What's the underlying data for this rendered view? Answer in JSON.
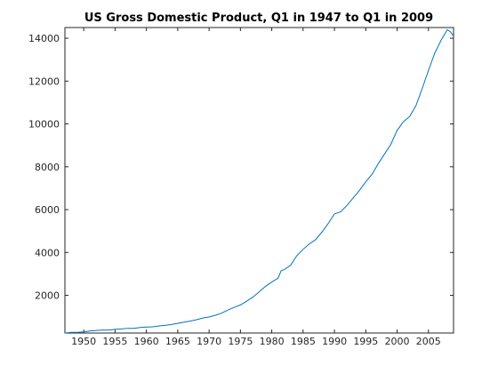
{
  "chart_data": {
    "type": "line",
    "title": "US Gross Domestic Product, Q1 in 1947 to Q1 in 2009",
    "xlabel": "",
    "ylabel": "",
    "xlim": [
      1947,
      2009
    ],
    "ylim": [
      240,
      14500
    ],
    "xticks": [
      1950,
      1955,
      1960,
      1965,
      1970,
      1975,
      1980,
      1985,
      1990,
      1995,
      2000,
      2005
    ],
    "yticks": [
      2000,
      4000,
      6000,
      8000,
      10000,
      12000,
      14000
    ],
    "grid": false,
    "line_color": "#0072BD",
    "series": [
      {
        "x": [
          1947,
          1948,
          1949,
          1950,
          1951,
          1952,
          1953,
          1954,
          1955,
          1956,
          1957,
          1958,
          1959,
          1960,
          1961,
          1962,
          1963,
          1964,
          1965,
          1966,
          1967,
          1968,
          1969,
          1970,
          1971,
          1972,
          1973,
          1974,
          1975,
          1976,
          1977,
          1978,
          1979,
          1980,
          1981,
          1981.5,
          1982,
          1983,
          1984,
          1985,
          1986,
          1987,
          1988,
          1989,
          1990,
          1991,
          1992,
          1993,
          1994,
          1995,
          1996,
          1997,
          1998,
          1999,
          2000,
          2001,
          2002,
          2003,
          2004,
          2005,
          2006,
          2007,
          2008,
          2008.5,
          2009
        ],
        "y": [
          240,
          270,
          270,
          290,
          340,
          360,
          380,
          380,
          410,
          430,
          460,
          460,
          500,
          520,
          530,
          570,
          600,
          640,
          690,
          750,
          800,
          860,
          940,
          990,
          1070,
          1170,
          1310,
          1440,
          1550,
          1730,
          1920,
          2160,
          2420,
          2620,
          2800,
          3150,
          3200,
          3400,
          3850,
          4150,
          4400,
          4600,
          4950,
          5350,
          5800,
          5900,
          6200,
          6550,
          6900,
          7300,
          7650,
          8150,
          8600,
          9050,
          9700,
          10100,
          10350,
          10850,
          11650,
          12500,
          13300,
          13900,
          14400,
          14300,
          14100
        ]
      }
    ]
  }
}
